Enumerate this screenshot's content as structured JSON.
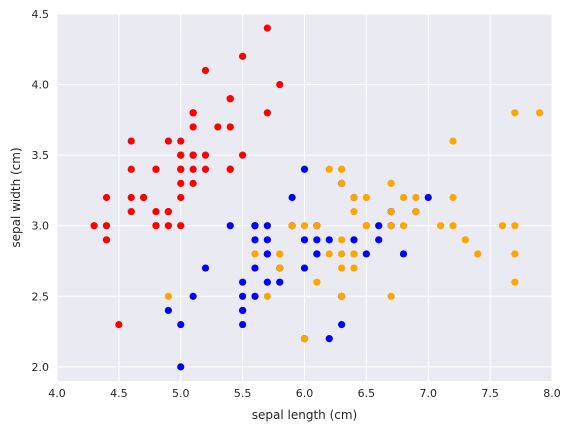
{
  "chart_data": {
    "type": "scatter",
    "xlabel": "sepal length (cm)",
    "ylabel": "sepal width (cm)",
    "xlim": [
      4.0,
      8.0
    ],
    "ylim": [
      1.9,
      4.5
    ],
    "xticks": [
      "4.0",
      "4.5",
      "5.0",
      "5.5",
      "6.0",
      "6.5",
      "7.0",
      "7.5",
      "8.0"
    ],
    "yticks": [
      "2.0",
      "2.5",
      "3.0",
      "3.5",
      "4.0",
      "4.5"
    ],
    "grid": true,
    "background": "#eaeaf2",
    "series": [
      {
        "color": "#ff0000",
        "points": [
          [
            5.1,
            3.5
          ],
          [
            4.9,
            3.0
          ],
          [
            4.7,
            3.2
          ],
          [
            4.6,
            3.1
          ],
          [
            5.0,
            3.6
          ],
          [
            5.4,
            3.9
          ],
          [
            4.6,
            3.4
          ],
          [
            5.0,
            3.4
          ],
          [
            4.4,
            2.9
          ],
          [
            4.9,
            3.1
          ],
          [
            5.4,
            3.7
          ],
          [
            4.8,
            3.4
          ],
          [
            4.8,
            3.0
          ],
          [
            4.3,
            3.0
          ],
          [
            5.8,
            4.0
          ],
          [
            5.7,
            4.4
          ],
          [
            5.4,
            3.9
          ],
          [
            5.1,
            3.5
          ],
          [
            5.7,
            3.8
          ],
          [
            5.1,
            3.8
          ],
          [
            5.4,
            3.4
          ],
          [
            5.1,
            3.7
          ],
          [
            4.6,
            3.6
          ],
          [
            5.1,
            3.3
          ],
          [
            4.8,
            3.4
          ],
          [
            5.0,
            3.0
          ],
          [
            5.0,
            3.4
          ],
          [
            5.2,
            3.5
          ],
          [
            5.2,
            3.4
          ],
          [
            4.7,
            3.2
          ],
          [
            4.8,
            3.1
          ],
          [
            5.4,
            3.4
          ],
          [
            5.2,
            4.1
          ],
          [
            5.5,
            4.2
          ],
          [
            4.9,
            3.1
          ],
          [
            5.0,
            3.2
          ],
          [
            5.5,
            3.5
          ],
          [
            4.9,
            3.6
          ],
          [
            4.4,
            3.0
          ],
          [
            5.1,
            3.4
          ],
          [
            5.0,
            3.5
          ],
          [
            4.5,
            2.3
          ],
          [
            4.4,
            3.2
          ],
          [
            5.0,
            3.5
          ],
          [
            5.1,
            3.8
          ],
          [
            4.8,
            3.0
          ],
          [
            5.1,
            3.8
          ],
          [
            4.6,
            3.2
          ],
          [
            5.3,
            3.7
          ],
          [
            5.0,
            3.3
          ]
        ]
      },
      {
        "color": "#0000ff",
        "points": [
          [
            7.0,
            3.2
          ],
          [
            6.4,
            3.2
          ],
          [
            6.9,
            3.1
          ],
          [
            5.5,
            2.3
          ],
          [
            6.5,
            2.8
          ],
          [
            5.7,
            2.8
          ],
          [
            6.3,
            3.3
          ],
          [
            4.9,
            2.4
          ],
          [
            6.6,
            2.9
          ],
          [
            5.2,
            2.7
          ],
          [
            5.0,
            2.0
          ],
          [
            5.9,
            3.0
          ],
          [
            6.0,
            2.2
          ],
          [
            6.1,
            2.9
          ],
          [
            5.6,
            2.9
          ],
          [
            6.7,
            3.1
          ],
          [
            5.6,
            3.0
          ],
          [
            5.8,
            2.7
          ],
          [
            6.2,
            2.2
          ],
          [
            5.6,
            2.5
          ],
          [
            5.9,
            3.2
          ],
          [
            6.1,
            2.8
          ],
          [
            6.3,
            2.5
          ],
          [
            6.1,
            2.8
          ],
          [
            6.4,
            2.9
          ],
          [
            6.6,
            3.0
          ],
          [
            6.8,
            2.8
          ],
          [
            6.7,
            3.0
          ],
          [
            6.0,
            2.9
          ],
          [
            5.7,
            2.6
          ],
          [
            5.5,
            2.4
          ],
          [
            5.5,
            2.4
          ],
          [
            5.8,
            2.7
          ],
          [
            6.0,
            2.7
          ],
          [
            5.4,
            3.0
          ],
          [
            6.0,
            3.4
          ],
          [
            6.7,
            3.1
          ],
          [
            6.3,
            2.3
          ],
          [
            5.6,
            3.0
          ],
          [
            5.5,
            2.5
          ],
          [
            5.5,
            2.6
          ],
          [
            6.1,
            3.0
          ],
          [
            5.8,
            2.6
          ],
          [
            5.0,
            2.3
          ],
          [
            5.6,
            2.7
          ],
          [
            5.7,
            3.0
          ],
          [
            5.7,
            2.9
          ],
          [
            6.2,
            2.9
          ],
          [
            5.1,
            2.5
          ],
          [
            5.7,
            2.8
          ]
        ]
      },
      {
        "color": "#ffa500",
        "points": [
          [
            6.3,
            3.3
          ],
          [
            5.8,
            2.7
          ],
          [
            7.1,
            3.0
          ],
          [
            6.3,
            2.9
          ],
          [
            6.5,
            3.0
          ],
          [
            7.6,
            3.0
          ],
          [
            4.9,
            2.5
          ],
          [
            7.3,
            2.9
          ],
          [
            6.7,
            2.5
          ],
          [
            7.2,
            3.6
          ],
          [
            6.5,
            3.2
          ],
          [
            6.4,
            2.7
          ],
          [
            6.8,
            3.0
          ],
          [
            5.7,
            2.5
          ],
          [
            5.8,
            2.8
          ],
          [
            6.4,
            3.2
          ],
          [
            6.5,
            3.0
          ],
          [
            7.7,
            3.8
          ],
          [
            7.7,
            2.6
          ],
          [
            6.0,
            2.2
          ],
          [
            6.9,
            3.2
          ],
          [
            5.6,
            2.8
          ],
          [
            7.7,
            2.8
          ],
          [
            6.3,
            2.7
          ],
          [
            6.7,
            3.3
          ],
          [
            7.2,
            3.2
          ],
          [
            6.2,
            2.8
          ],
          [
            6.1,
            3.0
          ],
          [
            6.4,
            2.8
          ],
          [
            7.2,
            3.0
          ],
          [
            7.4,
            2.8
          ],
          [
            7.9,
            3.8
          ],
          [
            6.4,
            2.8
          ],
          [
            6.3,
            2.8
          ],
          [
            6.1,
            2.6
          ],
          [
            7.7,
            3.0
          ],
          [
            6.3,
            3.4
          ],
          [
            6.4,
            3.1
          ],
          [
            6.0,
            3.0
          ],
          [
            6.9,
            3.1
          ],
          [
            6.7,
            3.1
          ],
          [
            6.9,
            3.1
          ],
          [
            5.8,
            2.7
          ],
          [
            6.8,
            3.2
          ],
          [
            6.7,
            3.3
          ],
          [
            6.7,
            3.0
          ],
          [
            6.3,
            2.5
          ],
          [
            6.5,
            3.0
          ],
          [
            6.2,
            3.4
          ],
          [
            5.9,
            3.0
          ]
        ]
      }
    ]
  }
}
